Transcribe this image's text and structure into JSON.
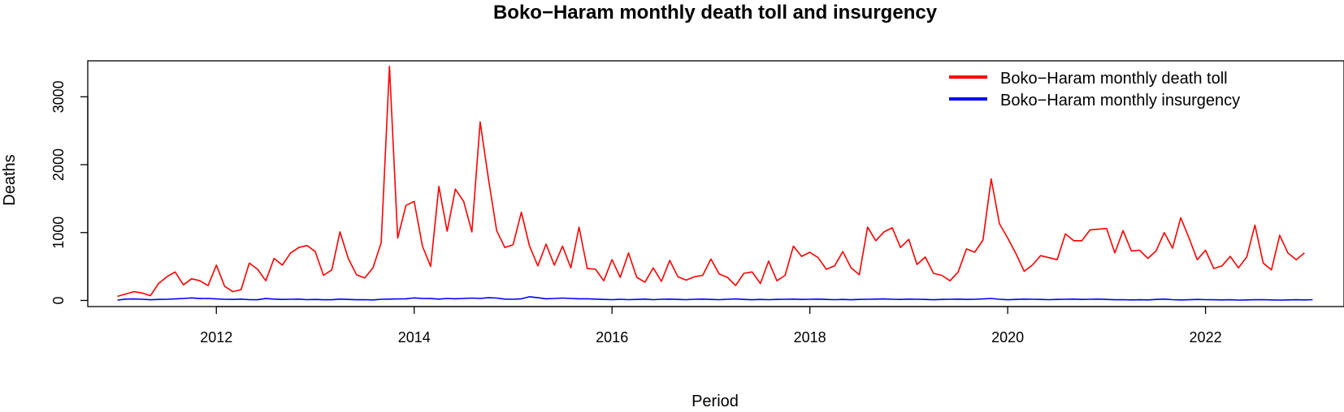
{
  "chart_data": {
    "type": "line",
    "title": "Boko−Haram monthly death toll and insurgency",
    "xlabel": "Period",
    "ylabel": "Deaths",
    "xlim": [
      2010.7,
      2023.4
    ],
    "ylim": [
      -90,
      3530
    ],
    "x_ticks": [
      2012,
      2014,
      2016,
      2018,
      2020,
      2022
    ],
    "x_tick_labels": [
      "2012",
      "2014",
      "2016",
      "2018",
      "2020",
      "2022"
    ],
    "y_ticks": [
      0,
      1000,
      2000,
      3000
    ],
    "y_tick_labels": [
      "0",
      "1000",
      "2000",
      "3000"
    ],
    "grid": false,
    "legend_position": "top-right",
    "x_start": 2011.0,
    "x_step": 0.083333,
    "series": [
      {
        "name": "Boko−Haram monthly death toll",
        "color": "#ff0000",
        "values": [
          60,
          95,
          130,
          110,
          70,
          250,
          350,
          420,
          230,
          320,
          290,
          220,
          520,
          210,
          130,
          160,
          550,
          460,
          290,
          620,
          520,
          700,
          780,
          810,
          720,
          370,
          450,
          1010,
          620,
          380,
          330,
          480,
          850,
          3450,
          920,
          1400,
          1460,
          800,
          500,
          1680,
          1020,
          1640,
          1460,
          1010,
          2630,
          1800,
          1030,
          780,
          820,
          1300,
          800,
          510,
          830,
          520,
          800,
          480,
          1080,
          470,
          460,
          290,
          600,
          340,
          700,
          340,
          270,
          480,
          280,
          590,
          350,
          300,
          350,
          370,
          610,
          390,
          340,
          220,
          400,
          420,
          250,
          580,
          290,
          370,
          800,
          650,
          710,
          630,
          460,
          510,
          720,
          480,
          380,
          1080,
          880,
          1010,
          1070,
          780,
          900,
          530,
          640,
          400,
          370,
          290,
          420,
          760,
          710,
          890,
          1790,
          1130,
          920,
          690,
          430,
          520,
          660,
          630,
          600,
          980,
          880,
          880,
          1040,
          1050,
          1060,
          700,
          1030,
          730,
          740,
          620,
          730,
          1000,
          770,
          1220,
          920,
          600,
          740,
          470,
          510,
          650,
          480,
          640,
          1110,
          550,
          450,
          960,
          700,
          600,
          700
        ]
      },
      {
        "name": "Boko−Haram monthly insurgency",
        "color": "#0000ff",
        "values": [
          5,
          20,
          22,
          18,
          10,
          15,
          18,
          22,
          30,
          38,
          28,
          30,
          22,
          18,
          15,
          20,
          12,
          10,
          28,
          20,
          15,
          18,
          20,
          12,
          15,
          10,
          10,
          20,
          15,
          10,
          12,
          8,
          18,
          20,
          22,
          25,
          38,
          30,
          28,
          20,
          30,
          25,
          30,
          35,
          30,
          40,
          35,
          20,
          18,
          25,
          55,
          40,
          25,
          30,
          35,
          30,
          25,
          25,
          20,
          15,
          12,
          18,
          12,
          15,
          20,
          12,
          18,
          20,
          15,
          12,
          18,
          20,
          15,
          12,
          18,
          22,
          15,
          10,
          15,
          12,
          15,
          18,
          20,
          15,
          18,
          20,
          15,
          12,
          15,
          10,
          15,
          18,
          20,
          22,
          18,
          15,
          20,
          18,
          15,
          10,
          15,
          18,
          20,
          15,
          18,
          22,
          30,
          18,
          10,
          15,
          20,
          18,
          15,
          12,
          15,
          18,
          20,
          15,
          18,
          20,
          15,
          10,
          12,
          8,
          10,
          8,
          15,
          20,
          12,
          8,
          10,
          15,
          12,
          10,
          8,
          10,
          5,
          8,
          10,
          12,
          8,
          5,
          8,
          10,
          8,
          12
        ]
      }
    ]
  }
}
